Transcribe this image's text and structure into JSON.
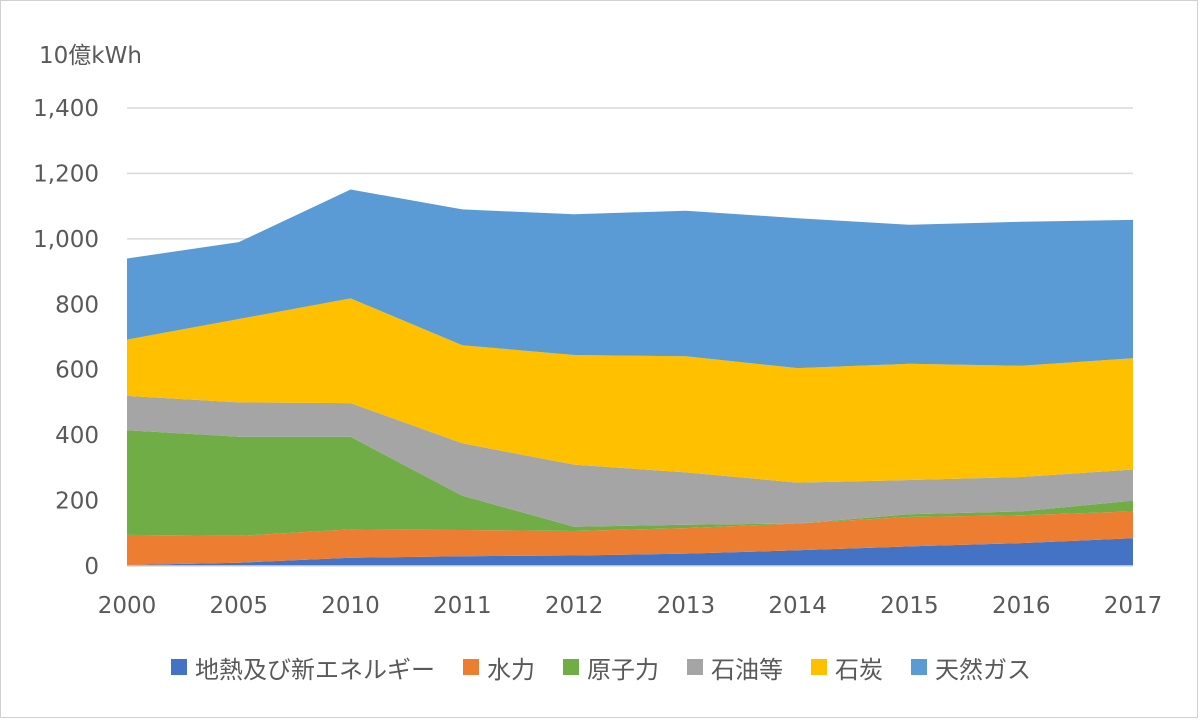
{
  "chart_data": {
    "type": "area",
    "stacked": true,
    "unit_label": "10億kWh",
    "categories": [
      "2000",
      "2005",
      "2010",
      "2011",
      "2012",
      "2013",
      "2014",
      "2015",
      "2016",
      "2017"
    ],
    "ylim": [
      0,
      1400
    ],
    "yticks": [
      0,
      200,
      400,
      600,
      800,
      1000,
      1200,
      1400
    ],
    "ytick_labels": [
      "0",
      "200",
      "400",
      "600",
      "800",
      "1,000",
      "1,200",
      "1,400"
    ],
    "grid": true,
    "legend_position": "bottom",
    "series": [
      {
        "name": "地熱及び新エネルギー",
        "color": "#4472C4",
        "values": [
          3,
          10,
          25,
          30,
          32,
          38,
          48,
          60,
          70,
          85
        ]
      },
      {
        "name": "水力",
        "color": "#ED7D31",
        "values": [
          92,
          82,
          87,
          80,
          75,
          78,
          82,
          90,
          85,
          82
        ]
      },
      {
        "name": "原子力",
        "color": "#70AD47",
        "values": [
          320,
          303,
          283,
          105,
          13,
          10,
          0,
          8,
          12,
          33
        ]
      },
      {
        "name": "石油等",
        "color": "#A5A5A5",
        "values": [
          105,
          105,
          103,
          160,
          190,
          160,
          125,
          105,
          105,
          95
        ]
      },
      {
        "name": "石炭",
        "color": "#FFC000",
        "values": [
          172,
          255,
          320,
          300,
          335,
          355,
          350,
          355,
          340,
          340
        ]
      },
      {
        "name": "天然ガス",
        "color": "#5B9BD5",
        "values": [
          248,
          235,
          333,
          415,
          430,
          445,
          458,
          425,
          440,
          423
        ]
      }
    ]
  }
}
